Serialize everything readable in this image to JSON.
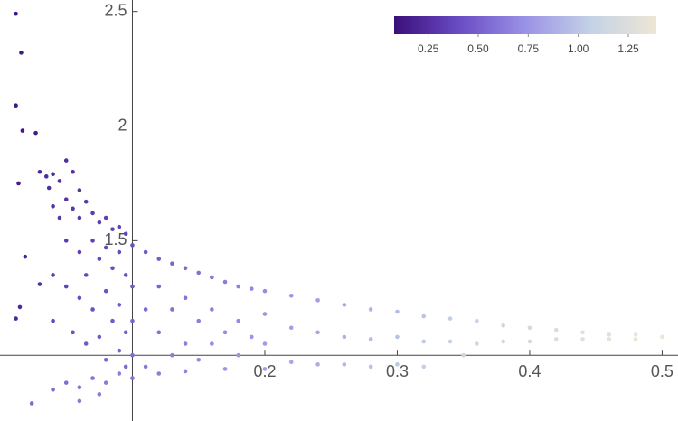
{
  "chart_data": {
    "type": "scatter",
    "xlim": [
      0,
      0.512
    ],
    "ylim": [
      0.713,
      2.55
    ],
    "xticks": [
      0.2,
      0.3,
      0.4,
      0.5
    ],
    "yticks": [
      1.5,
      2.0,
      2.5
    ],
    "x_axis_at": 1.0,
    "y_axis_at": 0.1,
    "clim": [
      0.08,
      1.39
    ],
    "cticks": [
      0.25,
      {
        "value": 0.5,
        "label": "0.50"
      },
      0.75,
      {
        "value": 1.0,
        "label": "1.00"
      },
      1.25
    ],
    "colormap": [
      "#3a0f7a",
      "#6a4cc4",
      "#9a92e6",
      "#c4d2e6",
      "#eee6d4"
    ],
    "x": [
      0.012,
      0.016,
      0.012,
      0.017,
      0.027,
      0.014,
      0.019,
      0.012,
      0.015,
      0.03,
      0.024,
      0.03,
      0.035,
      0.04,
      0.037,
      0.045,
      0.05,
      0.055,
      0.06,
      0.04,
      0.045,
      0.05,
      0.055,
      0.06,
      0.065,
      0.07,
      0.075,
      0.08,
      0.085,
      0.09,
      0.095,
      0.05,
      0.06,
      0.07,
      0.075,
      0.08,
      0.085,
      0.09,
      0.095,
      0.04,
      0.05,
      0.06,
      0.065,
      0.07,
      0.08,
      0.085,
      0.09,
      0.095,
      0.04,
      0.055,
      0.065,
      0.075,
      0.08,
      0.09,
      0.095,
      0.04,
      0.05,
      0.06,
      0.07,
      0.08,
      0.09,
      0.06,
      0.075,
      0.1,
      0.1,
      0.1,
      0.1,
      0.1,
      0.11,
      0.11,
      0.11,
      0.12,
      0.12,
      0.12,
      0.12,
      0.13,
      0.13,
      0.13,
      0.14,
      0.14,
      0.14,
      0.14,
      0.15,
      0.15,
      0.15,
      0.16,
      0.16,
      0.16,
      0.17,
      0.17,
      0.17,
      0.18,
      0.18,
      0.18,
      0.19,
      0.19,
      0.2,
      0.2,
      0.2,
      0.2,
      0.22,
      0.22,
      0.22,
      0.24,
      0.24,
      0.24,
      0.26,
      0.26,
      0.26,
      0.28,
      0.28,
      0.28,
      0.3,
      0.3,
      0.3,
      0.32,
      0.32,
      0.32,
      0.34,
      0.34,
      0.35,
      0.36,
      0.36,
      0.38,
      0.38,
      0.4,
      0.4,
      0.42,
      0.42,
      0.44,
      0.44,
      0.46,
      0.46,
      0.48,
      0.48,
      0.5
    ],
    "y": [
      2.49,
      2.32,
      2.09,
      1.98,
      1.97,
      1.75,
      1.43,
      1.16,
      1.21,
      1.31,
      0.79,
      1.8,
      1.78,
      1.79,
      1.73,
      1.76,
      1.85,
      1.8,
      1.72,
      1.65,
      1.6,
      1.68,
      1.64,
      1.6,
      1.67,
      1.62,
      1.58,
      1.6,
      1.55,
      1.56,
      1.53,
      1.5,
      1.45,
      1.5,
      1.42,
      1.47,
      1.38,
      1.45,
      1.35,
      1.35,
      1.3,
      1.25,
      1.35,
      1.2,
      1.28,
      1.15,
      1.22,
      1.1,
      1.15,
      1.1,
      1.05,
      1.08,
      0.98,
      1.02,
      0.95,
      0.85,
      0.88,
      0.86,
      0.9,
      0.88,
      0.92,
      0.8,
      0.83,
      1.48,
      1.3,
      1.15,
      1.0,
      0.9,
      1.45,
      1.2,
      0.95,
      1.42,
      1.3,
      1.1,
      0.92,
      1.4,
      1.2,
      1.0,
      1.38,
      1.25,
      1.05,
      0.93,
      1.36,
      1.15,
      0.98,
      1.34,
      1.2,
      1.05,
      1.32,
      1.1,
      0.94,
      1.3,
      1.15,
      1.0,
      1.29,
      1.08,
      1.28,
      1.18,
      1.05,
      0.94,
      1.26,
      1.12,
      0.97,
      1.24,
      1.1,
      0.96,
      1.22,
      1.08,
      0.96,
      1.2,
      1.07,
      0.95,
      1.19,
      1.08,
      0.96,
      1.17,
      1.06,
      0.95,
      1.16,
      1.06,
      1.0,
      1.15,
      1.05,
      1.13,
      1.06,
      1.12,
      1.06,
      1.11,
      1.07,
      1.1,
      1.07,
      1.09,
      1.07,
      1.09,
      1.07,
      1.08
    ],
    "c": [
      0.12,
      0.13,
      0.13,
      0.14,
      0.15,
      0.16,
      0.2,
      0.22,
      0.22,
      0.25,
      0.55,
      0.22,
      0.23,
      0.24,
      0.25,
      0.25,
      0.24,
      0.26,
      0.28,
      0.27,
      0.29,
      0.28,
      0.3,
      0.31,
      0.3,
      0.32,
      0.34,
      0.34,
      0.36,
      0.37,
      0.38,
      0.32,
      0.35,
      0.35,
      0.38,
      0.38,
      0.41,
      0.4,
      0.43,
      0.33,
      0.36,
      0.4,
      0.38,
      0.43,
      0.43,
      0.47,
      0.47,
      0.5,
      0.38,
      0.43,
      0.47,
      0.47,
      0.52,
      0.52,
      0.55,
      0.55,
      0.56,
      0.59,
      0.6,
      0.63,
      0.64,
      0.62,
      0.63,
      0.42,
      0.47,
      0.52,
      0.56,
      0.59,
      0.46,
      0.53,
      0.61,
      0.49,
      0.52,
      0.58,
      0.64,
      0.52,
      0.58,
      0.64,
      0.55,
      0.59,
      0.65,
      0.68,
      0.58,
      0.64,
      0.69,
      0.61,
      0.65,
      0.7,
      0.63,
      0.7,
      0.75,
      0.66,
      0.7,
      0.75,
      0.68,
      0.74,
      0.71,
      0.74,
      0.78,
      0.81,
      0.75,
      0.8,
      0.84,
      0.8,
      0.84,
      0.88,
      0.85,
      0.89,
      0.93,
      0.9,
      0.94,
      0.97,
      0.94,
      0.98,
      1.01,
      0.99,
      1.02,
      1.05,
      1.04,
      1.07,
      1.1,
      1.08,
      1.11,
      1.13,
      1.15,
      1.18,
      1.2,
      1.22,
      1.23,
      1.27,
      1.28,
      1.31,
      1.32,
      1.35,
      1.36,
      1.38
    ]
  }
}
